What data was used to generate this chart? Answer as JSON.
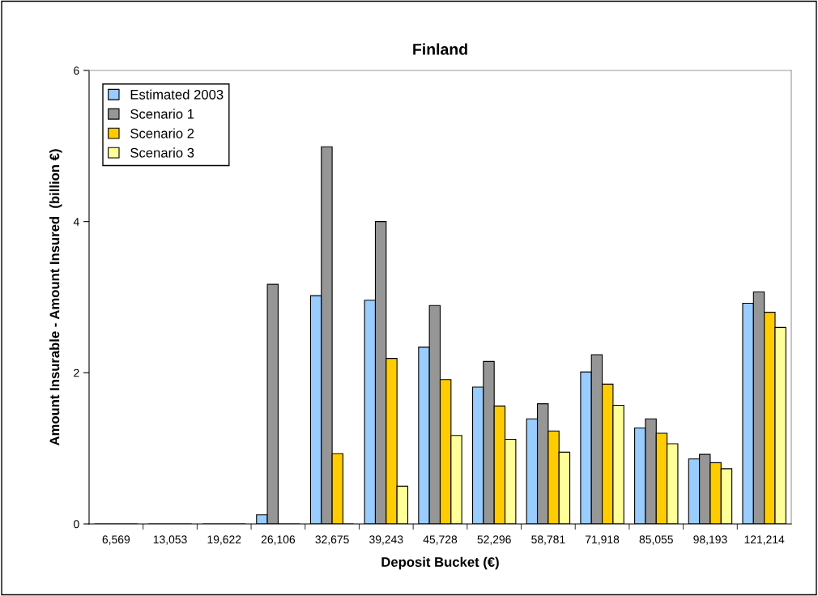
{
  "chart_data": {
    "type": "bar",
    "title": "Finland",
    "xlabel": "Deposit Bucket (€)",
    "ylabel": "Amount Insurable - Amount Insured  (billion €)",
    "categories": [
      "6,569",
      "13,053",
      "19,622",
      "26,106",
      "32,675",
      "39,243",
      "45,728",
      "52,296",
      "58,781",
      "71,918",
      "85,055",
      "98,193",
      "121,214"
    ],
    "series": [
      {
        "name": "Estimated 2003",
        "color": "#99ccff",
        "values": [
          0,
          0,
          0,
          0.12,
          3.02,
          2.96,
          2.34,
          1.81,
          1.39,
          2.01,
          1.27,
          0.86,
          2.92
        ]
      },
      {
        "name": "Scenario 1",
        "color": "#969696",
        "values": [
          0,
          0,
          0,
          3.17,
          4.99,
          4.0,
          2.89,
          2.15,
          1.59,
          2.24,
          1.39,
          0.92,
          3.07
        ]
      },
      {
        "name": "Scenario 2",
        "color": "#ffcc00",
        "values": [
          0,
          0,
          0,
          0,
          0.93,
          2.19,
          1.91,
          1.56,
          1.23,
          1.85,
          1.2,
          0.81,
          2.8
        ]
      },
      {
        "name": "Scenario 3",
        "color": "#ffff99",
        "values": [
          0,
          0,
          0,
          0,
          0,
          0.5,
          1.17,
          1.12,
          0.95,
          1.57,
          1.06,
          0.73,
          2.6
        ]
      }
    ],
    "ylim": [
      0,
      6
    ],
    "yticks": [
      0,
      2,
      4,
      6
    ],
    "grid": false,
    "legend": "top left"
  }
}
